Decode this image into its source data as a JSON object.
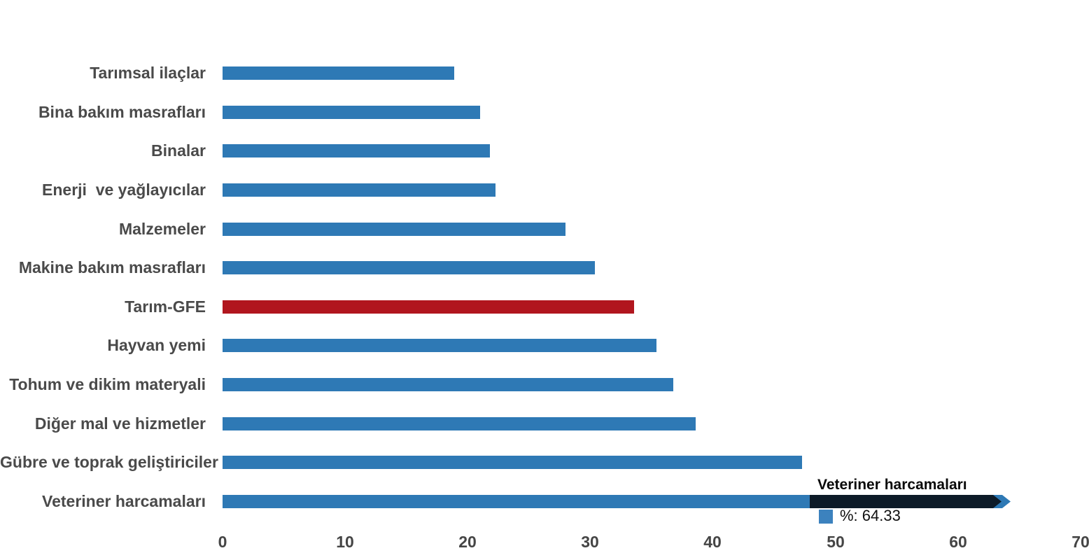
{
  "chart_data": {
    "type": "bar",
    "orientation": "horizontal",
    "title": "",
    "xlabel": "",
    "ylabel": "",
    "categories": [
      "Tarımsal ilaçlar",
      "Bina bakım masrafları",
      "Binalar",
      "Enerji  ve yağlayıcılar",
      "Malzemeler",
      "Makine bakım masrafları",
      "Tarım-GFE",
      "Hayvan yemi",
      "Tohum ve dikim materyali",
      "Diğer mal ve hizmetler",
      "Gübre ve toprak geliştiriciler",
      "Veteriner harcamaları"
    ],
    "values": [
      18.9,
      21,
      21.8,
      22.3,
      28,
      30.4,
      33.6,
      35.4,
      36.8,
      38.6,
      47.3,
      64.33
    ],
    "series_name": "%",
    "xlim": [
      0,
      70
    ],
    "xticks": [
      0,
      10,
      20,
      30,
      40,
      50,
      60,
      70
    ],
    "grid": false,
    "legend_position": "none",
    "bar_color": "#2E79B5",
    "highlight_index": 6,
    "highlight_color": "#B1161E",
    "highlight_category": "Tarım-GFE",
    "label_color": "#4a4a4a",
    "tick_color": "#454545"
  },
  "tooltip": {
    "title": "Veteriner harcamaları",
    "series_label": "%",
    "value": "64.33",
    "value_text": "%: 64.33",
    "swatch_color": "#3C82BE",
    "banner_color": "#0D1B28",
    "arrow_color": "#2E79B5"
  }
}
